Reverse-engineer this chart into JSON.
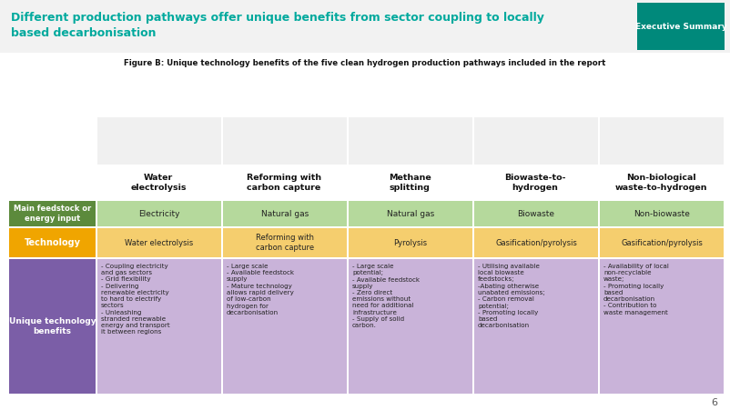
{
  "title_line1": "Different production pathways offer unique benefits from sector coupling to locally",
  "title_line2": "based decarbonisation",
  "title_color": "#00A99D",
  "title_bg": "#F5F5F5",
  "tag_text": "Executive Summary",
  "tag_bg": "#00897B",
  "tag_text_color": "#ffffff",
  "figure_caption": "Figure B: Unique technology benefits of the five clean hydrogen production pathways included in the report",
  "bg_color": "#ffffff",
  "col_headers": [
    "Water\nelectrolysis",
    "Reforming with\ncarbon capture",
    "Methane\nsplitting",
    "Biowaste-to-\nhydrogen",
    "Non-biological\nwaste-to-hydrogen"
  ],
  "row_labels": [
    "Main feedstock or\nenergy input",
    "Technology",
    "Unique technology\nbenefits"
  ],
  "row_label_bg": [
    "#5C8A3C",
    "#F0A500",
    "#7B5EA7"
  ],
  "feedstock_values": [
    "Electricity",
    "Natural gas",
    "Natural gas",
    "Biowaste",
    "Non-biowaste"
  ],
  "feedstock_bg": "#B5D99C",
  "technology_values": [
    "Water electrolysis",
    "Reforming with\ncarbon capture",
    "Pyrolysis",
    "Gasification/pyrolysis",
    "Gasification/pyrolysis"
  ],
  "technology_bg": "#F5CE6E",
  "benefits_values": [
    "- Coupling electricity\nand gas sectors\n- Grid flexibility\n- Delivering\nrenewable electricity\nto hard to electrify\nsectors\n- Unleashing\nstranded renewable\nenergy and transport\nit between regions",
    "- Large scale\n- Available feedstock\nsupply\n- Mature technology\nallows rapid delivery\nof low-carbon\nhydrogen for\ndecarbonisation",
    "- Large scale\npotential;\n- Available feedstock\nsupply\n- Zero direct\nemissions without\nneed for additional\ninfrastructure\n- Supply of solid\ncarbon.",
    "- Utilising available\nlocal biowaste\nfeedstocks;\n-Abating otherwise\nunabated emissions;\n- Carbon removal\npotential;\n- Promoting locally\nbased\ndecarbonisation",
    "- Availability of local\nnon-recyclable\nwaste;\n- Promoting locally\nbased\ndecarbonisation\n- Contribution to\nwaste management"
  ],
  "benefits_bg": "#C9B3D9",
  "benefits_dark_bg": "#7B5EA7",
  "page_number": "6"
}
